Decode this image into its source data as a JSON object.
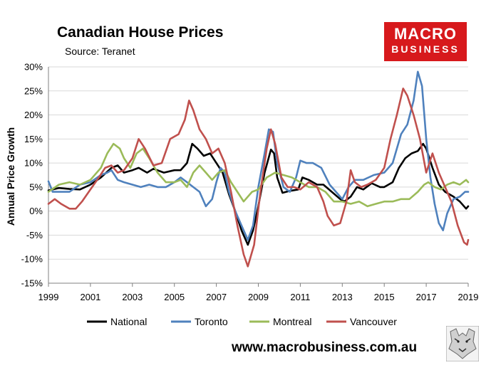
{
  "title": "Canadian House Prices",
  "subtitle": "Source: Teranet",
  "logo": {
    "line1": "MACRO",
    "line2": "BUSINESS",
    "background": "#d7191c"
  },
  "footer": {
    "url": "www.macrobusiness.com.au"
  },
  "chart_data": {
    "type": "line",
    "ylabel": "Annual Price Growth",
    "xlabel": "",
    "xlim": [
      1999,
      2019
    ],
    "ylim": [
      -15,
      30
    ],
    "xticks": [
      "1999",
      "2001",
      "2003",
      "2005",
      "2007",
      "2009",
      "2011",
      "2013",
      "2015",
      "2017",
      "2019"
    ],
    "yticks": [
      "-15%",
      "-10%",
      "-5%",
      "0%",
      "5%",
      "10%",
      "15%",
      "20%",
      "25%",
      "30%"
    ],
    "grid": true,
    "legend": "bottom",
    "series": [
      {
        "name": "National",
        "color": "#000000",
        "points": [
          [
            1999.0,
            4.3
          ],
          [
            1999.5,
            4.8
          ],
          [
            2000.0,
            4.6
          ],
          [
            2000.5,
            4.5
          ],
          [
            2001.0,
            5.5
          ],
          [
            2001.5,
            7.0
          ],
          [
            2002.0,
            9.0
          ],
          [
            2002.3,
            9.5
          ],
          [
            2002.6,
            8.0
          ],
          [
            2003.0,
            8.5
          ],
          [
            2003.3,
            9.0
          ],
          [
            2003.7,
            8.0
          ],
          [
            2004.0,
            8.8
          ],
          [
            2004.5,
            8.0
          ],
          [
            2005.0,
            8.5
          ],
          [
            2005.3,
            8.5
          ],
          [
            2005.6,
            10.0
          ],
          [
            2005.85,
            14.0
          ],
          [
            2006.1,
            13.0
          ],
          [
            2006.4,
            11.5
          ],
          [
            2006.7,
            12.0
          ],
          [
            2007.0,
            10.0
          ],
          [
            2007.3,
            8.0
          ],
          [
            2007.6,
            3.5
          ],
          [
            2007.9,
            0.0
          ],
          [
            2008.2,
            -4.0
          ],
          [
            2008.5,
            -7.0
          ],
          [
            2008.75,
            -4.0
          ],
          [
            2009.0,
            1.0
          ],
          [
            2009.3,
            8.0
          ],
          [
            2009.6,
            12.8
          ],
          [
            2009.75,
            12.0
          ],
          [
            2009.9,
            7.0
          ],
          [
            2010.15,
            3.8
          ],
          [
            2010.5,
            4.2
          ],
          [
            2010.9,
            4.5
          ],
          [
            2011.1,
            7.0
          ],
          [
            2011.4,
            6.5
          ],
          [
            2011.8,
            5.5
          ],
          [
            2012.1,
            5.5
          ],
          [
            2012.5,
            4.0
          ],
          [
            2012.9,
            2.5
          ],
          [
            2013.1,
            2.0
          ],
          [
            2013.4,
            3.0
          ],
          [
            2013.7,
            5.0
          ],
          [
            2014.0,
            4.5
          ],
          [
            2014.4,
            5.8
          ],
          [
            2014.8,
            5.0
          ],
          [
            2015.0,
            5.0
          ],
          [
            2015.4,
            6.0
          ],
          [
            2015.7,
            9.0
          ],
          [
            2016.0,
            11.0
          ],
          [
            2016.3,
            12.0
          ],
          [
            2016.6,
            12.5
          ],
          [
            2016.85,
            14.0
          ],
          [
            2017.0,
            13.0
          ],
          [
            2017.3,
            9.0
          ],
          [
            2017.6,
            5.5
          ],
          [
            2017.9,
            4.0
          ],
          [
            2018.3,
            3.0
          ],
          [
            2018.6,
            2.0
          ],
          [
            2018.9,
            0.5
          ],
          [
            2019.0,
            1.0
          ]
        ]
      },
      {
        "name": "Toronto",
        "color": "#4f81bd",
        "points": [
          [
            1999.0,
            6.2
          ],
          [
            1999.2,
            4.0
          ],
          [
            1999.5,
            4.0
          ],
          [
            2000.0,
            4.0
          ],
          [
            2000.5,
            5.5
          ],
          [
            2001.0,
            6.0
          ],
          [
            2001.5,
            7.5
          ],
          [
            2001.8,
            8.0
          ],
          [
            2002.0,
            8.5
          ],
          [
            2002.3,
            6.5
          ],
          [
            2002.6,
            6.0
          ],
          [
            2003.0,
            5.5
          ],
          [
            2003.4,
            5.0
          ],
          [
            2003.8,
            5.5
          ],
          [
            2004.2,
            5.0
          ],
          [
            2004.6,
            5.0
          ],
          [
            2005.0,
            6.0
          ],
          [
            2005.3,
            7.0
          ],
          [
            2005.6,
            6.0
          ],
          [
            2005.9,
            5.0
          ],
          [
            2006.2,
            4.0
          ],
          [
            2006.5,
            1.0
          ],
          [
            2006.8,
            2.5
          ],
          [
            2007.0,
            6.0
          ],
          [
            2007.2,
            9.0
          ],
          [
            2007.4,
            8.0
          ],
          [
            2007.6,
            4.0
          ],
          [
            2007.9,
            0.0
          ],
          [
            2008.2,
            -3.0
          ],
          [
            2008.5,
            -6.0
          ],
          [
            2008.75,
            -3.0
          ],
          [
            2009.0,
            5.0
          ],
          [
            2009.3,
            12.0
          ],
          [
            2009.5,
            17.0
          ],
          [
            2009.7,
            16.5
          ],
          [
            2009.9,
            10.0
          ],
          [
            2010.2,
            5.0
          ],
          [
            2010.5,
            4.0
          ],
          [
            2010.8,
            7.0
          ],
          [
            2011.0,
            10.5
          ],
          [
            2011.3,
            10.0
          ],
          [
            2011.6,
            10.0
          ],
          [
            2012.0,
            9.0
          ],
          [
            2012.4,
            5.5
          ],
          [
            2012.8,
            3.5
          ],
          [
            2013.0,
            2.5
          ],
          [
            2013.3,
            5.0
          ],
          [
            2013.6,
            6.5
          ],
          [
            2014.0,
            6.5
          ],
          [
            2014.5,
            7.5
          ],
          [
            2015.0,
            8.0
          ],
          [
            2015.4,
            10.0
          ],
          [
            2015.8,
            16.0
          ],
          [
            2016.1,
            18.0
          ],
          [
            2016.4,
            23.0
          ],
          [
            2016.6,
            29.0
          ],
          [
            2016.8,
            26.0
          ],
          [
            2017.0,
            15.0
          ],
          [
            2017.2,
            7.0
          ],
          [
            2017.4,
            1.5
          ],
          [
            2017.6,
            -2.5
          ],
          [
            2017.8,
            -4.0
          ],
          [
            2018.0,
            -0.5
          ],
          [
            2018.3,
            2.5
          ],
          [
            2018.6,
            3.0
          ],
          [
            2018.85,
            4.0
          ],
          [
            2019.0,
            4.0
          ]
        ]
      },
      {
        "name": "Montreal",
        "color": "#9bbb59",
        "points": [
          [
            1999.0,
            4.0
          ],
          [
            1999.5,
            5.5
          ],
          [
            2000.0,
            6.0
          ],
          [
            2000.5,
            5.5
          ],
          [
            2001.0,
            6.5
          ],
          [
            2001.5,
            9.0
          ],
          [
            2001.8,
            12.0
          ],
          [
            2002.1,
            14.0
          ],
          [
            2002.4,
            13.0
          ],
          [
            2002.6,
            11.0
          ],
          [
            2002.9,
            9.0
          ],
          [
            2003.2,
            12.0
          ],
          [
            2003.5,
            13.0
          ],
          [
            2003.8,
            11.0
          ],
          [
            2004.2,
            8.0
          ],
          [
            2004.6,
            6.0
          ],
          [
            2005.0,
            6.0
          ],
          [
            2005.3,
            6.5
          ],
          [
            2005.6,
            5.0
          ],
          [
            2005.9,
            8.0
          ],
          [
            2006.2,
            9.5
          ],
          [
            2006.5,
            8.0
          ],
          [
            2006.8,
            6.5
          ],
          [
            2007.1,
            8.0
          ],
          [
            2007.4,
            8.5
          ],
          [
            2007.7,
            6.0
          ],
          [
            2008.0,
            4.0
          ],
          [
            2008.3,
            2.0
          ],
          [
            2008.7,
            4.0
          ],
          [
            2009.0,
            4.5
          ],
          [
            2009.4,
            7.0
          ],
          [
            2009.8,
            8.0
          ],
          [
            2010.2,
            7.5
          ],
          [
            2010.6,
            7.0
          ],
          [
            2011.0,
            6.0
          ],
          [
            2011.4,
            5.0
          ],
          [
            2011.8,
            5.0
          ],
          [
            2012.2,
            4.0
          ],
          [
            2012.6,
            2.0
          ],
          [
            2013.0,
            2.0
          ],
          [
            2013.4,
            1.5
          ],
          [
            2013.8,
            2.0
          ],
          [
            2014.2,
            1.0
          ],
          [
            2014.6,
            1.5
          ],
          [
            2015.0,
            2.0
          ],
          [
            2015.4,
            2.0
          ],
          [
            2015.8,
            2.5
          ],
          [
            2016.2,
            2.5
          ],
          [
            2016.6,
            4.0
          ],
          [
            2016.9,
            5.5
          ],
          [
            2017.1,
            6.0
          ],
          [
            2017.4,
            5.0
          ],
          [
            2017.7,
            4.5
          ],
          [
            2018.0,
            5.5
          ],
          [
            2018.3,
            6.0
          ],
          [
            2018.6,
            5.5
          ],
          [
            2018.9,
            6.5
          ],
          [
            2019.0,
            6.0
          ]
        ]
      },
      {
        "name": "Vancouver",
        "color": "#c0504d",
        "points": [
          [
            1999.0,
            1.5
          ],
          [
            1999.3,
            2.5
          ],
          [
            1999.6,
            1.5
          ],
          [
            2000.0,
            0.5
          ],
          [
            2000.3,
            0.5
          ],
          [
            2000.6,
            2.0
          ],
          [
            2001.0,
            4.5
          ],
          [
            2001.4,
            7.0
          ],
          [
            2001.7,
            9.0
          ],
          [
            2002.0,
            9.5
          ],
          [
            2002.3,
            8.0
          ],
          [
            2002.6,
            8.5
          ],
          [
            2003.0,
            11.0
          ],
          [
            2003.3,
            15.0
          ],
          [
            2003.6,
            13.0
          ],
          [
            2004.0,
            9.5
          ],
          [
            2004.4,
            10.0
          ],
          [
            2004.8,
            15.0
          ],
          [
            2005.2,
            16.0
          ],
          [
            2005.5,
            19.0
          ],
          [
            2005.7,
            23.0
          ],
          [
            2005.9,
            21.0
          ],
          [
            2006.2,
            17.0
          ],
          [
            2006.5,
            15.0
          ],
          [
            2006.8,
            12.0
          ],
          [
            2007.1,
            13.0
          ],
          [
            2007.4,
            10.0
          ],
          [
            2007.7,
            4.0
          ],
          [
            2008.0,
            -3.0
          ],
          [
            2008.3,
            -9.0
          ],
          [
            2008.5,
            -11.5
          ],
          [
            2008.8,
            -7.0
          ],
          [
            2009.1,
            4.0
          ],
          [
            2009.4,
            13.0
          ],
          [
            2009.6,
            17.0
          ],
          [
            2009.8,
            14.0
          ],
          [
            2010.1,
            7.0
          ],
          [
            2010.4,
            5.0
          ],
          [
            2010.7,
            5.0
          ],
          [
            2011.0,
            4.5
          ],
          [
            2011.4,
            6.0
          ],
          [
            2011.8,
            5.0
          ],
          [
            2012.1,
            2.0
          ],
          [
            2012.3,
            -1.0
          ],
          [
            2012.6,
            -3.0
          ],
          [
            2012.9,
            -2.5
          ],
          [
            2013.2,
            2.0
          ],
          [
            2013.4,
            8.5
          ],
          [
            2013.6,
            6.0
          ],
          [
            2013.9,
            5.0
          ],
          [
            2014.2,
            5.5
          ],
          [
            2014.6,
            6.5
          ],
          [
            2015.0,
            9.0
          ],
          [
            2015.3,
            15.0
          ],
          [
            2015.6,
            20.0
          ],
          [
            2015.9,
            25.5
          ],
          [
            2016.1,
            24.0
          ],
          [
            2016.4,
            20.0
          ],
          [
            2016.7,
            15.0
          ],
          [
            2017.0,
            8.0
          ],
          [
            2017.3,
            12.0
          ],
          [
            2017.6,
            8.0
          ],
          [
            2017.9,
            5.0
          ],
          [
            2018.2,
            2.0
          ],
          [
            2018.5,
            -3.0
          ],
          [
            2018.8,
            -6.5
          ],
          [
            2018.95,
            -7.0
          ],
          [
            2019.0,
            -6.0
          ]
        ]
      }
    ]
  }
}
